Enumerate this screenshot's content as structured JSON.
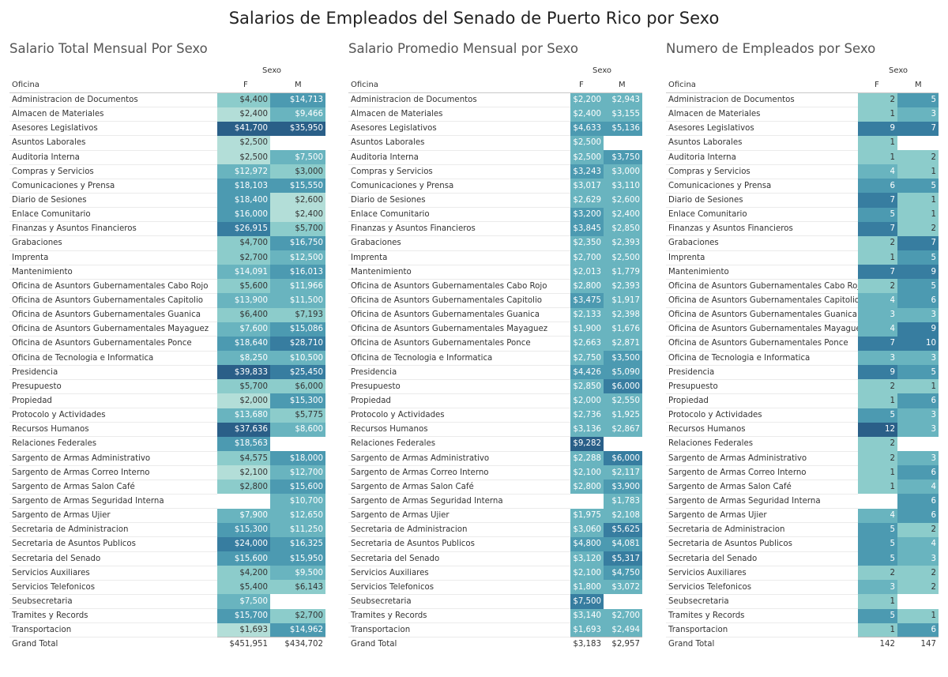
{
  "title": "Salarios de Empleados del Senado de Puerto Rico por Sexo",
  "colors": {
    "scale": [
      "#d2ede6",
      "#b3ded8",
      "#8ccccb",
      "#69b4bf",
      "#4c9ab1",
      "#377da0",
      "#2a5f88"
    ],
    "text_light": "#ffffff",
    "text_dark": "#333333"
  },
  "chart_data": [
    {
      "type": "table",
      "title": "Salario Total Mensual Por Sexo",
      "column_group_label": "Sexo",
      "row_header": "Oficina",
      "columns": [
        "F",
        "M"
      ],
      "rows": [
        {
          "oficina": "Administracion de Documentos",
          "F": "$4,400",
          "M": "$14,713"
        },
        {
          "oficina": "Almacen de Materiales",
          "F": "$2,400",
          "M": "$9,466"
        },
        {
          "oficina": "Asesores Legislativos",
          "F": "$41,700",
          "M": "$35,950"
        },
        {
          "oficina": "Asuntos Laborales",
          "F": "$2,500",
          "M": ""
        },
        {
          "oficina": "Auditoria Interna",
          "F": "$2,500",
          "M": "$7,500"
        },
        {
          "oficina": "Compras y Servicios",
          "F": "$12,972",
          "M": "$3,000"
        },
        {
          "oficina": "Comunicaciones y Prensa",
          "F": "$18,103",
          "M": "$15,550"
        },
        {
          "oficina": "Diario de Sesiones",
          "F": "$18,400",
          "M": "$2,600"
        },
        {
          "oficina": "Enlace Comunitario",
          "F": "$16,000",
          "M": "$2,400"
        },
        {
          "oficina": "Finanzas y Asuntos Financieros",
          "F": "$26,915",
          "M": "$5,700"
        },
        {
          "oficina": "Grabaciones",
          "F": "$4,700",
          "M": "$16,750"
        },
        {
          "oficina": "Imprenta",
          "F": "$2,700",
          "M": "$12,500"
        },
        {
          "oficina": "Mantenimiento",
          "F": "$14,091",
          "M": "$16,013"
        },
        {
          "oficina": "Oficina de Asuntors Gubernamentales Cabo Rojo",
          "F": "$5,600",
          "M": "$11,966"
        },
        {
          "oficina": "Oficina de Asuntors Gubernamentales Capitolio",
          "F": "$13,900",
          "M": "$11,500"
        },
        {
          "oficina": "Oficina de Asuntors Gubernamentales Guanica",
          "F": "$6,400",
          "M": "$7,193"
        },
        {
          "oficina": "Oficina de Asuntors Gubernamentales Mayaguez",
          "F": "$7,600",
          "M": "$15,086"
        },
        {
          "oficina": "Oficina de Asuntors Gubernamentales Ponce",
          "F": "$18,640",
          "M": "$28,710"
        },
        {
          "oficina": "Oficina de Tecnologia e Informatica",
          "F": "$8,250",
          "M": "$10,500"
        },
        {
          "oficina": "Presidencia",
          "F": "$39,833",
          "M": "$25,450"
        },
        {
          "oficina": "Presupuesto",
          "F": "$5,700",
          "M": "$6,000"
        },
        {
          "oficina": "Propiedad",
          "F": "$2,000",
          "M": "$15,300"
        },
        {
          "oficina": "Protocolo y Actividades",
          "F": "$13,680",
          "M": "$5,775"
        },
        {
          "oficina": "Recursos Humanos",
          "F": "$37,636",
          "M": "$8,600"
        },
        {
          "oficina": "Relaciones Federales",
          "F": "$18,563",
          "M": ""
        },
        {
          "oficina": "Sargento de Armas Administrativo",
          "F": "$4,575",
          "M": "$18,000"
        },
        {
          "oficina": "Sargento de Armas Correo Interno",
          "F": "$2,100",
          "M": "$12,700"
        },
        {
          "oficina": "Sargento de Armas Salon Café",
          "F": "$2,800",
          "M": "$15,600"
        },
        {
          "oficina": "Sargento de Armas Seguridad Interna",
          "F": "",
          "M": "$10,700"
        },
        {
          "oficina": "Sargento de Armas Ujier",
          "F": "$7,900",
          "M": "$12,650"
        },
        {
          "oficina": "Secretaria de Administracion",
          "F": "$15,300",
          "M": "$11,250"
        },
        {
          "oficina": "Secretaria de Asuntos Publicos",
          "F": "$24,000",
          "M": "$16,325"
        },
        {
          "oficina": "Secretaria del Senado",
          "F": "$15,600",
          "M": "$15,950"
        },
        {
          "oficina": "Servicios Auxiliares",
          "F": "$4,200",
          "M": "$9,500"
        },
        {
          "oficina": "Servicios Telefonicos",
          "F": "$5,400",
          "M": "$6,143"
        },
        {
          "oficina": "Seubsecretaria",
          "F": "$7,500",
          "M": ""
        },
        {
          "oficina": "Tramites y Records",
          "F": "$15,700",
          "M": "$2,700"
        },
        {
          "oficina": "Transportacion",
          "F": "$1,693",
          "M": "$14,962"
        }
      ],
      "total": {
        "oficina": "Grand Total",
        "F": "$451,951",
        "M": "$434,702"
      }
    },
    {
      "type": "table",
      "title": "Salario Promedio Mensual por Sexo",
      "column_group_label": "Sexo",
      "row_header": "Oficina",
      "columns": [
        "F",
        "M"
      ],
      "rows": [
        {
          "oficina": "Administracion de Documentos",
          "F": "$2,200",
          "M": "$2,943"
        },
        {
          "oficina": "Almacen de Materiales",
          "F": "$2,400",
          "M": "$3,155"
        },
        {
          "oficina": "Asesores Legislativos",
          "F": "$4,633",
          "M": "$5,136"
        },
        {
          "oficina": "Asuntos Laborales",
          "F": "$2,500",
          "M": ""
        },
        {
          "oficina": "Auditoria Interna",
          "F": "$2,500",
          "M": "$3,750"
        },
        {
          "oficina": "Compras y Servicios",
          "F": "$3,243",
          "M": "$3,000"
        },
        {
          "oficina": "Comunicaciones y Prensa",
          "F": "$3,017",
          "M": "$3,110"
        },
        {
          "oficina": "Diario de Sesiones",
          "F": "$2,629",
          "M": "$2,600"
        },
        {
          "oficina": "Enlace Comunitario",
          "F": "$3,200",
          "M": "$2,400"
        },
        {
          "oficina": "Finanzas y Asuntos Financieros",
          "F": "$3,845",
          "M": "$2,850"
        },
        {
          "oficina": "Grabaciones",
          "F": "$2,350",
          "M": "$2,393"
        },
        {
          "oficina": "Imprenta",
          "F": "$2,700",
          "M": "$2,500"
        },
        {
          "oficina": "Mantenimiento",
          "F": "$2,013",
          "M": "$1,779"
        },
        {
          "oficina": "Oficina de Asuntors Gubernamentales Cabo Rojo",
          "F": "$2,800",
          "M": "$2,393"
        },
        {
          "oficina": "Oficina de Asuntors Gubernamentales Capitolio",
          "F": "$3,475",
          "M": "$1,917"
        },
        {
          "oficina": "Oficina de Asuntors Gubernamentales Guanica",
          "F": "$2,133",
          "M": "$2,398"
        },
        {
          "oficina": "Oficina de Asuntors Gubernamentales Mayaguez",
          "F": "$1,900",
          "M": "$1,676"
        },
        {
          "oficina": "Oficina de Asuntors Gubernamentales Ponce",
          "F": "$2,663",
          "M": "$2,871"
        },
        {
          "oficina": "Oficina de Tecnologia e Informatica",
          "F": "$2,750",
          "M": "$3,500"
        },
        {
          "oficina": "Presidencia",
          "F": "$4,426",
          "M": "$5,090"
        },
        {
          "oficina": "Presupuesto",
          "F": "$2,850",
          "M": "$6,000"
        },
        {
          "oficina": "Propiedad",
          "F": "$2,000",
          "M": "$2,550"
        },
        {
          "oficina": "Protocolo y Actividades",
          "F": "$2,736",
          "M": "$1,925"
        },
        {
          "oficina": "Recursos Humanos",
          "F": "$3,136",
          "M": "$2,867"
        },
        {
          "oficina": "Relaciones Federales",
          "F": "$9,282",
          "M": ""
        },
        {
          "oficina": "Sargento de Armas Administrativo",
          "F": "$2,288",
          "M": "$6,000"
        },
        {
          "oficina": "Sargento de Armas Correo Interno",
          "F": "$2,100",
          "M": "$2,117"
        },
        {
          "oficina": "Sargento de Armas Salon Café",
          "F": "$2,800",
          "M": "$3,900"
        },
        {
          "oficina": "Sargento de Armas Seguridad Interna",
          "F": "",
          "M": "$1,783"
        },
        {
          "oficina": "Sargento de Armas Ujier",
          "F": "$1,975",
          "M": "$2,108"
        },
        {
          "oficina": "Secretaria de Administracion",
          "F": "$3,060",
          "M": "$5,625"
        },
        {
          "oficina": "Secretaria de Asuntos Publicos",
          "F": "$4,800",
          "M": "$4,081"
        },
        {
          "oficina": "Secretaria del Senado",
          "F": "$3,120",
          "M": "$5,317"
        },
        {
          "oficina": "Servicios Auxiliares",
          "F": "$2,100",
          "M": "$4,750"
        },
        {
          "oficina": "Servicios Telefonicos",
          "F": "$1,800",
          "M": "$3,072"
        },
        {
          "oficina": "Seubsecretaria",
          "F": "$7,500",
          "M": ""
        },
        {
          "oficina": "Tramites y Records",
          "F": "$3,140",
          "M": "$2,700"
        },
        {
          "oficina": "Transportacion",
          "F": "$1,693",
          "M": "$2,494"
        }
      ],
      "total": {
        "oficina": "Grand Total",
        "F": "$3,183",
        "M": "$2,957"
      }
    },
    {
      "type": "table",
      "title": "Numero de Empleados por Sexo",
      "column_group_label": "Sexo",
      "row_header": "Oficina",
      "columns": [
        "F",
        "M"
      ],
      "rows": [
        {
          "oficina": "Administracion de Documentos",
          "F": "2",
          "M": "5"
        },
        {
          "oficina": "Almacen de Materiales",
          "F": "1",
          "M": "3"
        },
        {
          "oficina": "Asesores Legislativos",
          "F": "9",
          "M": "7"
        },
        {
          "oficina": "Asuntos Laborales",
          "F": "1",
          "M": ""
        },
        {
          "oficina": "Auditoria Interna",
          "F": "1",
          "M": "2"
        },
        {
          "oficina": "Compras y Servicios",
          "F": "4",
          "M": "1"
        },
        {
          "oficina": "Comunicaciones y Prensa",
          "F": "6",
          "M": "5"
        },
        {
          "oficina": "Diario de Sesiones",
          "F": "7",
          "M": "1"
        },
        {
          "oficina": "Enlace Comunitario",
          "F": "5",
          "M": "1"
        },
        {
          "oficina": "Finanzas y Asuntos Financieros",
          "F": "7",
          "M": "2"
        },
        {
          "oficina": "Grabaciones",
          "F": "2",
          "M": "7"
        },
        {
          "oficina": "Imprenta",
          "F": "1",
          "M": "5"
        },
        {
          "oficina": "Mantenimiento",
          "F": "7",
          "M": "9"
        },
        {
          "oficina": "Oficina de Asuntors Gubernamentales Cabo Rojo",
          "F": "2",
          "M": "5"
        },
        {
          "oficina": "Oficina de Asuntors Gubernamentales Capitolio",
          "F": "4",
          "M": "6"
        },
        {
          "oficina": "Oficina de Asuntors Gubernamentales Guanica",
          "F": "3",
          "M": "3"
        },
        {
          "oficina": "Oficina de Asuntors Gubernamentales Mayaguez",
          "F": "4",
          "M": "9"
        },
        {
          "oficina": "Oficina de Asuntors Gubernamentales Ponce",
          "F": "7",
          "M": "10"
        },
        {
          "oficina": "Oficina de Tecnologia e Informatica",
          "F": "3",
          "M": "3"
        },
        {
          "oficina": "Presidencia",
          "F": "9",
          "M": "5"
        },
        {
          "oficina": "Presupuesto",
          "F": "2",
          "M": "1"
        },
        {
          "oficina": "Propiedad",
          "F": "1",
          "M": "6"
        },
        {
          "oficina": "Protocolo y Actividades",
          "F": "5",
          "M": "3"
        },
        {
          "oficina": "Recursos Humanos",
          "F": "12",
          "M": "3"
        },
        {
          "oficina": "Relaciones Federales",
          "F": "2",
          "M": ""
        },
        {
          "oficina": "Sargento de Armas Administrativo",
          "F": "2",
          "M": "3"
        },
        {
          "oficina": "Sargento de Armas Correo Interno",
          "F": "1",
          "M": "6"
        },
        {
          "oficina": "Sargento de Armas Salon Café",
          "F": "1",
          "M": "4"
        },
        {
          "oficina": "Sargento de Armas Seguridad Interna",
          "F": "",
          "M": "6"
        },
        {
          "oficina": "Sargento de Armas Ujier",
          "F": "4",
          "M": "6"
        },
        {
          "oficina": "Secretaria de Administracion",
          "F": "5",
          "M": "2"
        },
        {
          "oficina": "Secretaria de Asuntos Publicos",
          "F": "5",
          "M": "4"
        },
        {
          "oficina": "Secretaria del Senado",
          "F": "5",
          "M": "3"
        },
        {
          "oficina": "Servicios Auxiliares",
          "F": "2",
          "M": "2"
        },
        {
          "oficina": "Servicios Telefonicos",
          "F": "3",
          "M": "2"
        },
        {
          "oficina": "Seubsecretaria",
          "F": "1",
          "M": ""
        },
        {
          "oficina": "Tramites y Records",
          "F": "5",
          "M": "1"
        },
        {
          "oficina": "Transportacion",
          "F": "1",
          "M": "6"
        }
      ],
      "total": {
        "oficina": "Grand Total",
        "F": "142",
        "M": "147"
      }
    }
  ]
}
